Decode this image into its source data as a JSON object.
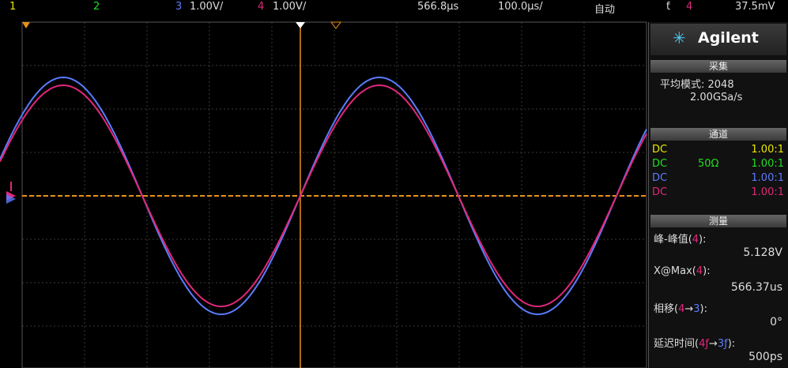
{
  "top_bar": {
    "ch1": "1",
    "ch2": "2",
    "ch3": "3",
    "ch3_scale": "1.00V/",
    "ch4": "4",
    "ch4_scale": "1.00V/",
    "time_offset": "566.8µs",
    "time_scale": "100.0µs/",
    "trigger_mode": "自动",
    "trigger_symbol": "ƭ",
    "trigger_channel": "4",
    "trigger_level": "37.5mV"
  },
  "panel": {
    "brand": "Agilent",
    "acquisition": {
      "title": "采集",
      "mode": "平均模式: 2048",
      "rate": "2.00GSa/s"
    },
    "channels": {
      "title": "通道",
      "rows": [
        {
          "coupling": "DC",
          "probe": "1.00:1",
          "color": "#e8e800"
        },
        {
          "coupling": "DC",
          "impedance": "50Ω",
          "probe": "1.00:1",
          "color": "#22dd22"
        },
        {
          "coupling": "DC",
          "probe": "1.00:1",
          "color": "#5a7cff"
        },
        {
          "coupling": "DC",
          "probe": "1.00:1",
          "color": "#e0287a"
        }
      ]
    },
    "measurements": {
      "title": "测量",
      "items": [
        {
          "parts": [
            {
              "text": "峰-峰值("
            },
            {
              "text": "4",
              "color": "#e0287a"
            },
            {
              "text": "):"
            }
          ],
          "value": "5.128V"
        },
        {
          "parts": [
            {
              "text": "X@Max("
            },
            {
              "text": "4",
              "color": "#e0287a"
            },
            {
              "text": "):"
            }
          ],
          "value": "566.37us"
        },
        {
          "parts": [
            {
              "text": "相移("
            },
            {
              "text": "4",
              "color": "#e0287a"
            },
            {
              "text": "→"
            },
            {
              "text": "3",
              "color": "#5a7cff"
            },
            {
              "text": "):"
            }
          ],
          "value": "0°"
        },
        {
          "parts": [
            {
              "text": "延迟时间("
            },
            {
              "text": "4ƒ",
              "color": "#e0287a"
            },
            {
              "text": "→"
            },
            {
              "text": "3ƒ",
              "color": "#5a7cff"
            },
            {
              "text": "):"
            }
          ],
          "value": "500ps"
        }
      ]
    }
  }
}
